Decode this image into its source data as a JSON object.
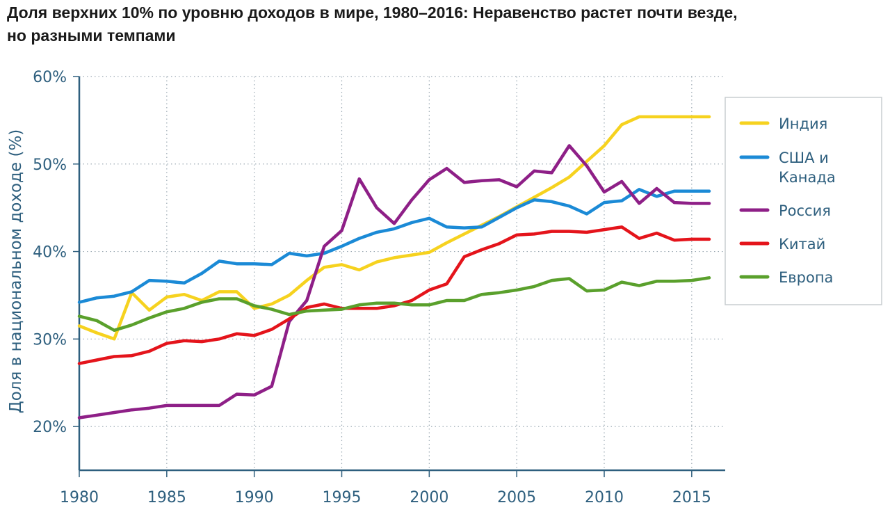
{
  "title_lines": [
    "Доля верхних 10% по уровню доходов в мире, 1980–2016: Неравенство растет почти везде,",
    "но разными темпами"
  ],
  "chart_data": {
    "type": "line",
    "title": "Доля верхних 10% по уровню доходов в мире, 1980–2016: Неравенство растет почти везде, но разными темпами",
    "ylabel": "Доля в национальном доходе (%)",
    "xlabel": "",
    "xlim": [
      1980,
      2016
    ],
    "ylim": [
      15,
      60
    ],
    "x_ticks": [
      1980,
      1985,
      1990,
      1995,
      2000,
      2005,
      2010,
      2015
    ],
    "y_ticks": [
      20,
      30,
      40,
      50,
      60
    ],
    "y_tick_labels": [
      "20%",
      "30%",
      "40%",
      "50%",
      "60%"
    ],
    "grid": "horizontal dotted",
    "legend_position": "right",
    "x": [
      1980,
      1981,
      1982,
      1983,
      1984,
      1985,
      1986,
      1987,
      1988,
      1989,
      1990,
      1991,
      1992,
      1993,
      1994,
      1995,
      1996,
      1997,
      1998,
      1999,
      2000,
      2001,
      2002,
      2003,
      2004,
      2005,
      2006,
      2007,
      2008,
      2009,
      2010,
      2011,
      2012,
      2013,
      2014,
      2015,
      2016
    ],
    "series": [
      {
        "name": "Индия",
        "label_lines": [
          "Индия"
        ],
        "color": "#f6d21f",
        "values": [
          31.5,
          30.7,
          30.0,
          35.3,
          33.3,
          34.8,
          35.1,
          34.4,
          35.4,
          35.4,
          33.5,
          34.0,
          35.0,
          36.7,
          38.2,
          38.5,
          37.9,
          38.8,
          39.3,
          39.6,
          39.9,
          41.0,
          42.0,
          43.0,
          44.0,
          45.1,
          46.2,
          47.3,
          48.5,
          50.3,
          52.1,
          54.5,
          55.4,
          55.4,
          55.4,
          55.4,
          55.4
        ]
      },
      {
        "name": "США и Канада",
        "label_lines": [
          "США и",
          "Канада"
        ],
        "color": "#1b8ad6",
        "values": [
          34.2,
          34.7,
          34.9,
          35.4,
          36.7,
          36.6,
          36.4,
          37.5,
          38.9,
          38.6,
          38.6,
          38.5,
          39.8,
          39.5,
          39.8,
          40.6,
          41.5,
          42.2,
          42.6,
          43.3,
          43.8,
          42.8,
          42.7,
          42.8,
          43.9,
          45.0,
          45.9,
          45.7,
          45.2,
          44.3,
          45.6,
          45.8,
          47.1,
          46.3,
          46.9,
          46.9,
          46.9
        ]
      },
      {
        "name": "Россия",
        "label_lines": [
          "Россия"
        ],
        "color": "#8e1f87",
        "values": [
          21.0,
          21.3,
          21.6,
          21.9,
          22.1,
          22.4,
          22.4,
          22.4,
          22.4,
          23.7,
          23.6,
          24.6,
          32.0,
          34.4,
          40.6,
          42.4,
          48.3,
          45.0,
          43.2,
          45.9,
          48.2,
          49.5,
          47.9,
          48.1,
          48.2,
          47.4,
          49.2,
          49.0,
          52.1,
          49.8,
          46.8,
          48.0,
          45.5,
          47.2,
          45.6,
          45.5,
          45.5
        ]
      },
      {
        "name": "Китай",
        "label_lines": [
          "Китай"
        ],
        "color": "#e4141b",
        "values": [
          27.2,
          27.6,
          28.0,
          28.1,
          28.6,
          29.5,
          29.8,
          29.7,
          30.0,
          30.6,
          30.4,
          31.1,
          32.3,
          33.6,
          34.0,
          33.5,
          33.5,
          33.5,
          33.8,
          34.4,
          35.6,
          36.3,
          39.4,
          40.2,
          40.9,
          41.9,
          42.0,
          42.3,
          42.3,
          42.2,
          42.5,
          42.8,
          41.5,
          42.1,
          41.3,
          41.4,
          41.4
        ]
      },
      {
        "name": "Европа",
        "label_lines": [
          "Европа"
        ],
        "color": "#5aa02c",
        "values": [
          32.6,
          32.1,
          31.0,
          31.6,
          32.4,
          33.1,
          33.5,
          34.2,
          34.6,
          34.6,
          33.8,
          33.4,
          32.8,
          33.2,
          33.3,
          33.4,
          33.9,
          34.1,
          34.1,
          33.9,
          33.9,
          34.4,
          34.4,
          35.1,
          35.3,
          35.6,
          36.0,
          36.7,
          36.9,
          35.5,
          35.6,
          36.5,
          36.1,
          36.6,
          36.6,
          36.7,
          37.0
        ]
      }
    ]
  }
}
